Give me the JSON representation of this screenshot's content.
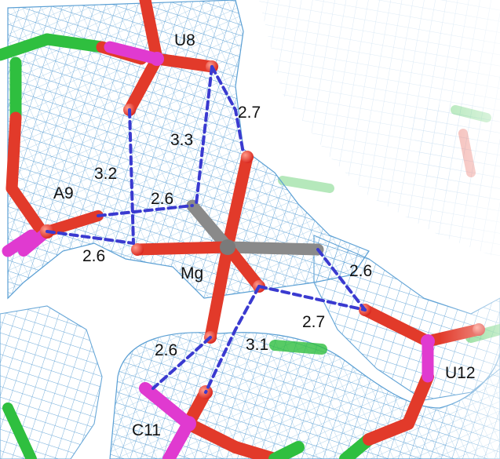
{
  "figure": {
    "description_free": true,
    "residue_labels": {
      "u8": "U8",
      "a9": "A9",
      "c11": "C11",
      "u12": "U12"
    },
    "ion_label": "Mg",
    "distances": {
      "d1": "2.7",
      "d2": "3.3",
      "d3": "3.2",
      "d4": "2.6",
      "d5": "2.6",
      "d6": "2.6",
      "d7": "2.7",
      "d8": "2.6",
      "d9": "3.1"
    },
    "colors": {
      "mesh": "#5a9fd4",
      "mesh_faint": "#b9d6ee",
      "carbon_green": "#2fbf3f",
      "oxygen_red": "#e23a2a",
      "phosphorus_magenta": "#e03ad0",
      "magnesium_gray": "#8a8a8a",
      "hbond_dash": "#3a3ad0"
    }
  }
}
